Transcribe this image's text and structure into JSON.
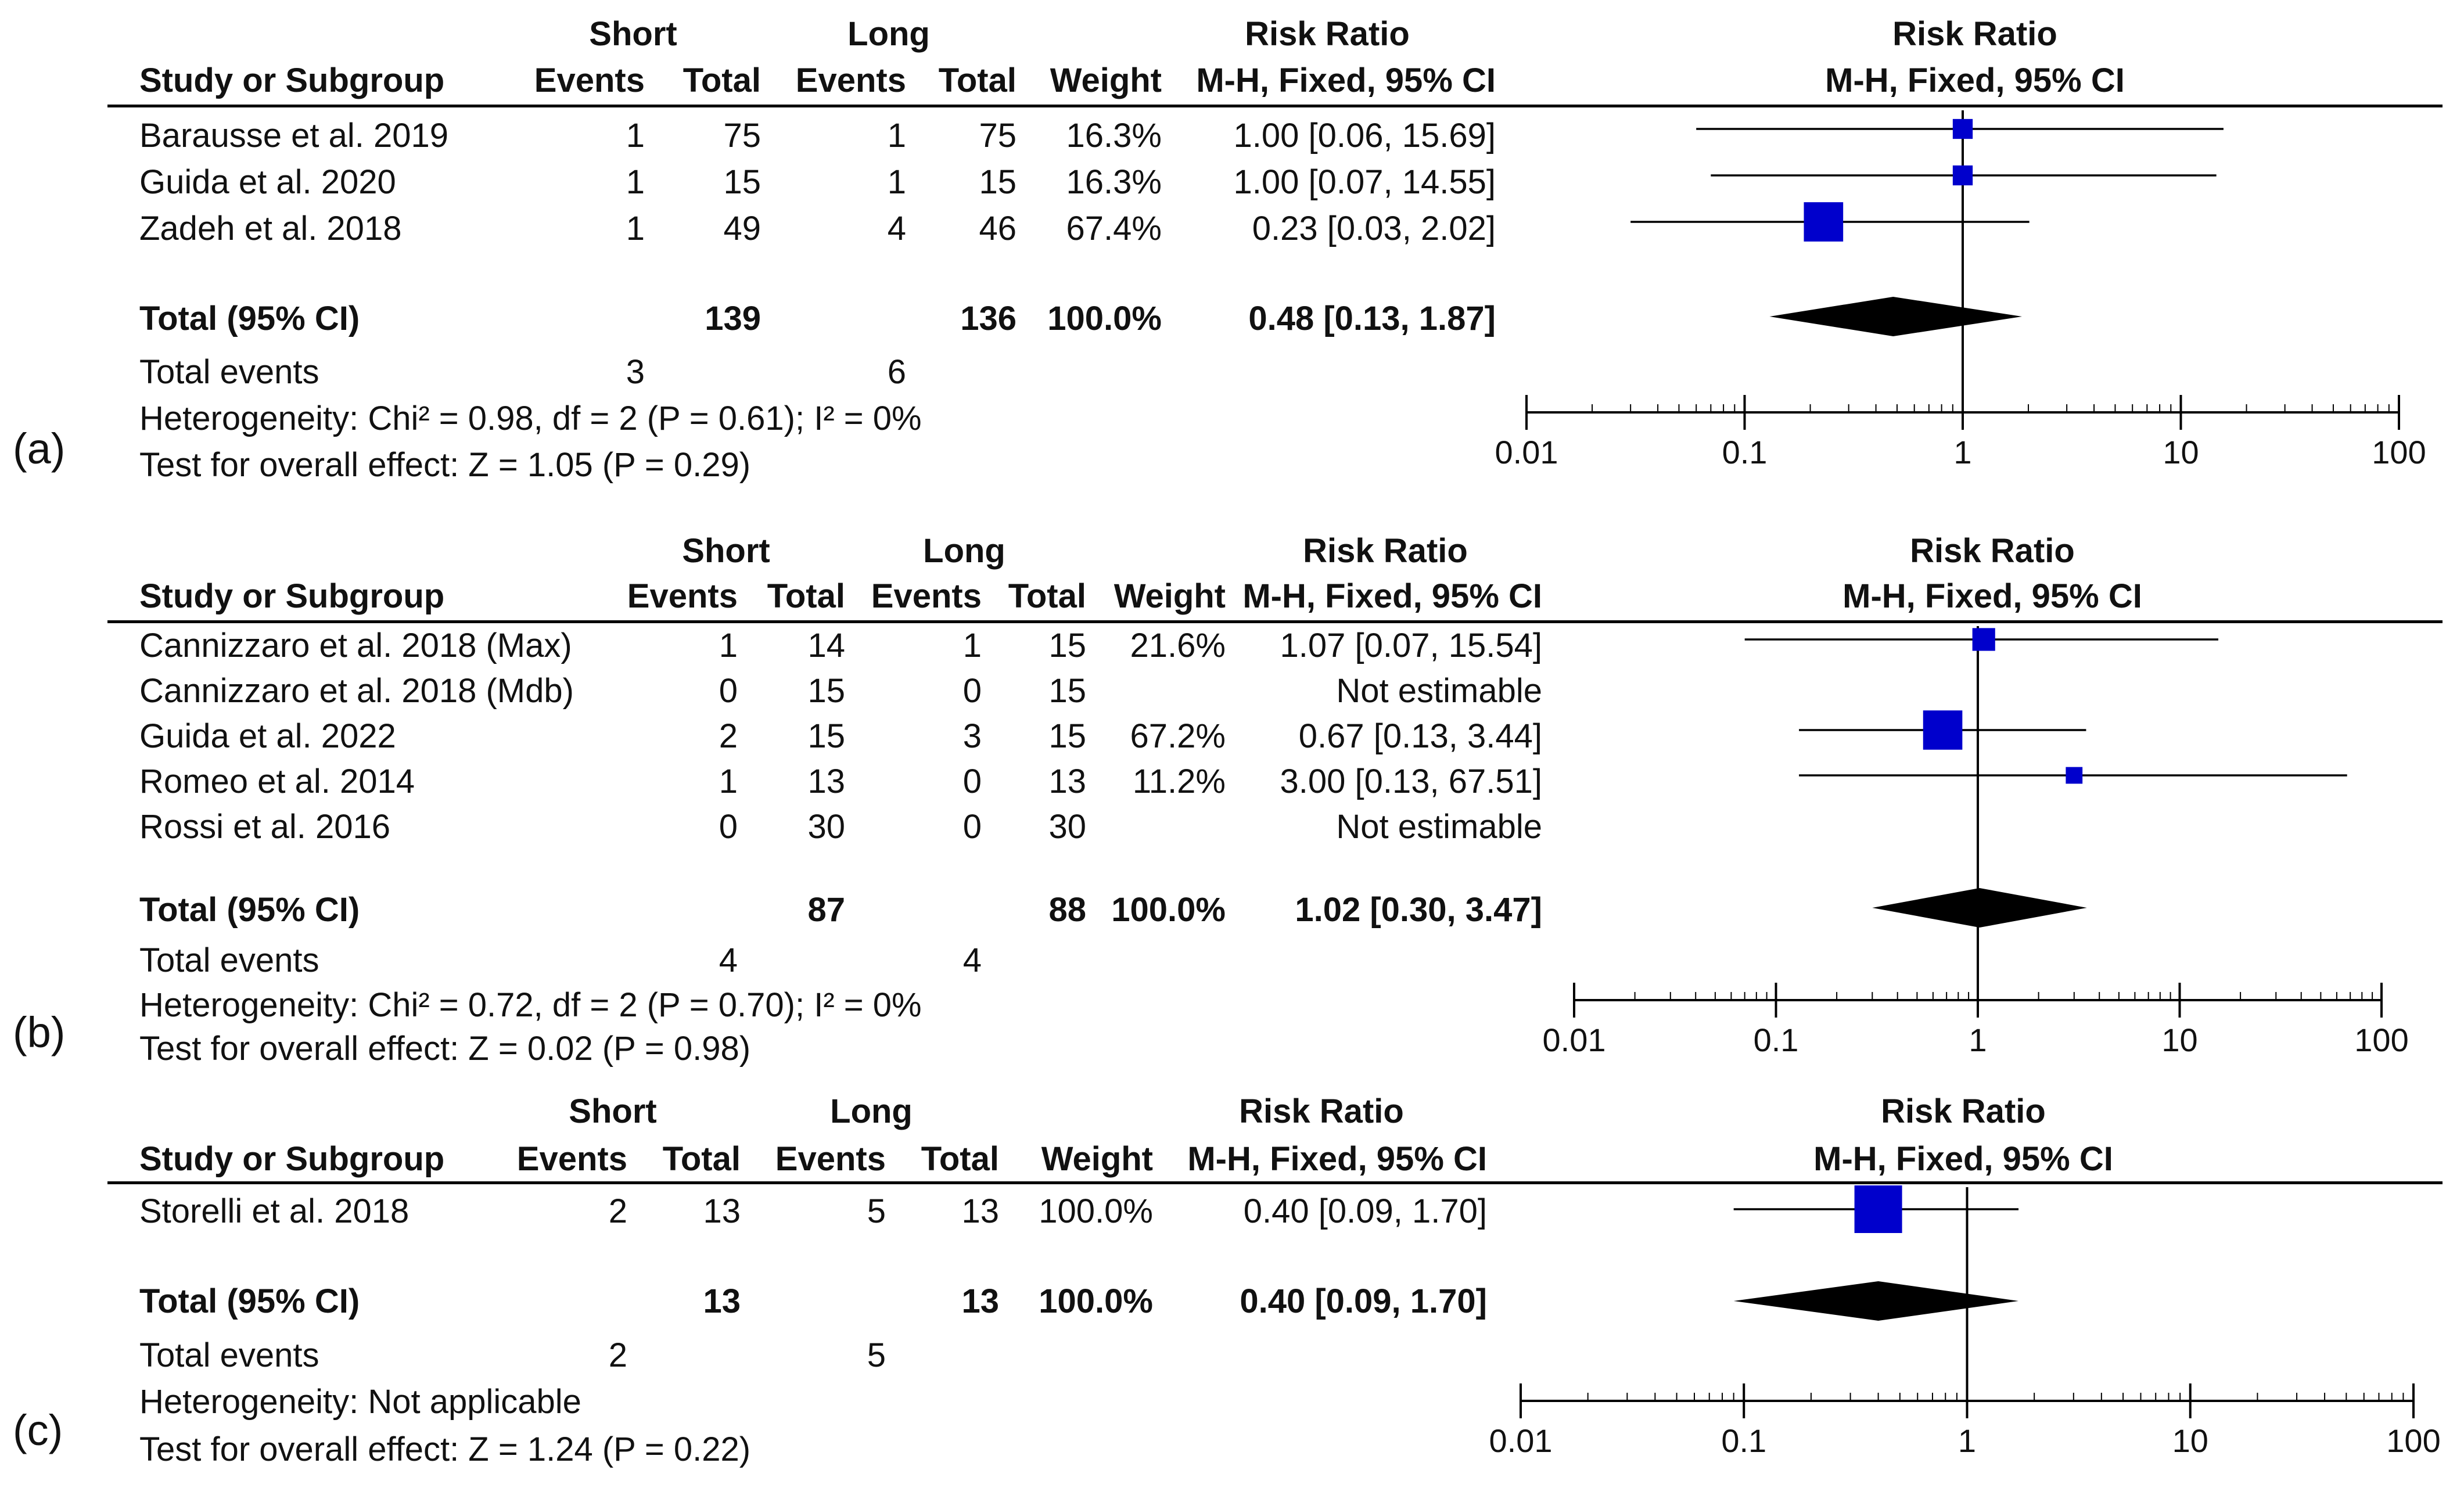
{
  "chart_data": [
    {
      "type": "forest",
      "panel_label": "(a)",
      "group1": "Short",
      "group2": "Long",
      "col_study": "Study or Subgroup",
      "col_events": "Events",
      "col_total": "Total",
      "col_weight": "Weight",
      "col_rr_title": "Risk Ratio",
      "col_rr_method": "M-H, Fixed, 95% CI",
      "plot_title": "Risk Ratio",
      "plot_method": "M-H, Fixed, 95% CI",
      "studies": [
        {
          "name": "Barausse et al. 2019",
          "e1": "1",
          "n1": "75",
          "e2": "1",
          "n2": "75",
          "weight": "16.3%",
          "ci_text": "1.00 [0.06, 15.69]",
          "rr": 1.0,
          "lo": 0.06,
          "hi": 15.69,
          "w": 16.3
        },
        {
          "name": "Guida et al. 2020",
          "e1": "1",
          "n1": "15",
          "e2": "1",
          "n2": "15",
          "weight": "16.3%",
          "ci_text": "1.00 [0.07, 14.55]",
          "rr": 1.0,
          "lo": 0.07,
          "hi": 14.55,
          "w": 16.3
        },
        {
          "name": "Zadeh et al. 2018",
          "e1": "1",
          "n1": "49",
          "e2": "4",
          "n2": "46",
          "weight": "67.4%",
          "ci_text": "0.23 [0.03, 2.02]",
          "rr": 0.23,
          "lo": 0.03,
          "hi": 2.02,
          "w": 67.4
        }
      ],
      "total": {
        "label": "Total (95% CI)",
        "n1": "139",
        "n2": "136",
        "weight": "100.0%",
        "ci_text": "0.48 [0.13, 1.87]",
        "rr": 0.48,
        "lo": 0.13,
        "hi": 1.87
      },
      "total_events": {
        "label": "Total events",
        "e1": "3",
        "e2": "6"
      },
      "heterogeneity": "Heterogeneity: Chi² = 0.98, df = 2 (P = 0.61); I² = 0%",
      "overall_effect": "Test for overall effect: Z = 1.05 (P = 0.29)",
      "x_scale": "log",
      "xlim": [
        0.01,
        100
      ],
      "ticks": [
        "0.01",
        "0.1",
        "1",
        "10",
        "100"
      ]
    },
    {
      "type": "forest",
      "panel_label": "(b)",
      "group1": "Short",
      "group2": "Long",
      "col_study": "Study or Subgroup",
      "col_events": "Events",
      "col_total": "Total",
      "col_weight": "Weight",
      "col_rr_title": "Risk Ratio",
      "col_rr_method": "M-H, Fixed, 95% CI",
      "plot_title": "Risk Ratio",
      "plot_method": "M-H, Fixed, 95% CI",
      "studies": [
        {
          "name": "Cannizzaro et al. 2018 (Max)",
          "e1": "1",
          "n1": "14",
          "e2": "1",
          "n2": "15",
          "weight": "21.6%",
          "ci_text": "1.07 [0.07, 15.54]",
          "rr": 1.07,
          "lo": 0.07,
          "hi": 15.54,
          "w": 21.6
        },
        {
          "name": "Cannizzaro et al. 2018 (Mdb)",
          "e1": "0",
          "n1": "15",
          "e2": "0",
          "n2": "15",
          "weight": "",
          "ci_text": "Not estimable",
          "rr": null,
          "lo": null,
          "hi": null,
          "w": 0
        },
        {
          "name": "Guida et al. 2022",
          "e1": "2",
          "n1": "15",
          "e2": "3",
          "n2": "15",
          "weight": "67.2%",
          "ci_text": "0.67 [0.13, 3.44]",
          "rr": 0.67,
          "lo": 0.13,
          "hi": 3.44,
          "w": 67.2
        },
        {
          "name": "Romeo et al. 2014",
          "e1": "1",
          "n1": "13",
          "e2": "0",
          "n2": "13",
          "weight": "11.2%",
          "ci_text": "3.00 [0.13, 67.51]",
          "rr": 3.0,
          "lo": 0.13,
          "hi": 67.51,
          "w": 11.2
        },
        {
          "name": "Rossi et al. 2016",
          "e1": "0",
          "n1": "30",
          "e2": "0",
          "n2": "30",
          "weight": "",
          "ci_text": "Not estimable",
          "rr": null,
          "lo": null,
          "hi": null,
          "w": 0
        }
      ],
      "total": {
        "label": "Total (95% CI)",
        "n1": "87",
        "n2": "88",
        "weight": "100.0%",
        "ci_text": "1.02 [0.30, 3.47]",
        "rr": 1.02,
        "lo": 0.3,
        "hi": 3.47
      },
      "total_events": {
        "label": "Total events",
        "e1": "4",
        "e2": "4"
      },
      "heterogeneity": "Heterogeneity: Chi² = 0.72, df = 2 (P = 0.70); I² = 0%",
      "overall_effect": "Test for overall effect: Z = 0.02 (P = 0.98)",
      "x_scale": "log",
      "xlim": [
        0.01,
        100
      ],
      "ticks": [
        "0.01",
        "0.1",
        "1",
        "10",
        "100"
      ]
    },
    {
      "type": "forest",
      "panel_label": "(c)",
      "group1": "Short",
      "group2": "Long",
      "col_study": "Study or Subgroup",
      "col_events": "Events",
      "col_total": "Total",
      "col_weight": "Weight",
      "col_rr_title": "Risk Ratio",
      "col_rr_method": "M-H, Fixed, 95% CI",
      "plot_title": "Risk Ratio",
      "plot_method": "M-H, Fixed, 95% CI",
      "studies": [
        {
          "name": "Storelli et al. 2018",
          "e1": "2",
          "n1": "13",
          "e2": "5",
          "n2": "13",
          "weight": "100.0%",
          "ci_text": "0.40 [0.09, 1.70]",
          "rr": 0.4,
          "lo": 0.09,
          "hi": 1.7,
          "w": 100.0
        }
      ],
      "total": {
        "label": "Total (95% CI)",
        "n1": "13",
        "n2": "13",
        "weight": "100.0%",
        "ci_text": "0.40 [0.09, 1.70]",
        "rr": 0.4,
        "lo": 0.09,
        "hi": 1.7
      },
      "total_events": {
        "label": "Total events",
        "e1": "2",
        "e2": "5"
      },
      "heterogeneity": "Heterogeneity: Not applicable",
      "overall_effect": "Test for overall effect: Z = 1.24 (P = 0.22)",
      "x_scale": "log",
      "xlim": [
        0.01,
        100
      ],
      "ticks": [
        "0.01",
        "0.1",
        "1",
        "10",
        "100"
      ]
    }
  ]
}
